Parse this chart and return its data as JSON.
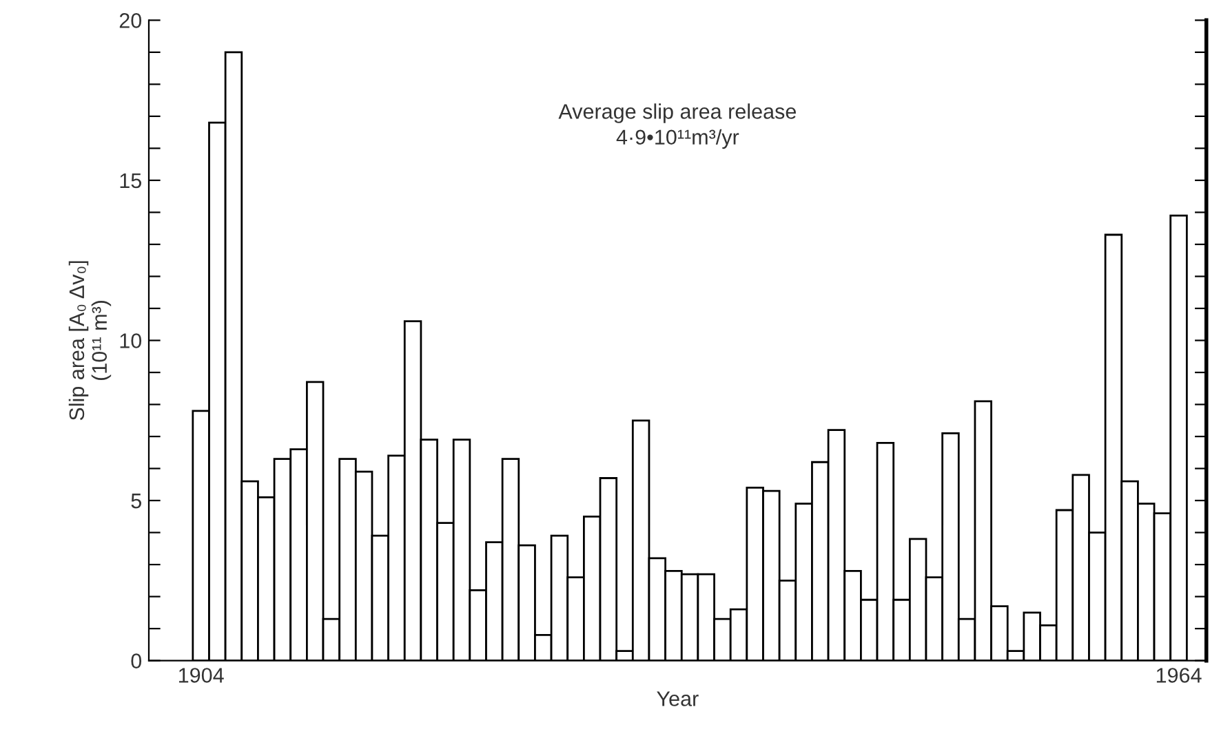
{
  "chart_data": {
    "type": "bar",
    "ylabel": "Slip area [A₀ Δv₀]\n(10¹¹ m³)",
    "xlabel": "Year",
    "annotations": [
      "Average slip area release\n4·9•10¹¹m³/yr"
    ],
    "categories": [
      "1904",
      null,
      null,
      null,
      null,
      null,
      null,
      null,
      null,
      null,
      null,
      null,
      null,
      null,
      null,
      null,
      null,
      null,
      null,
      null,
      null,
      null,
      null,
      null,
      null,
      null,
      null,
      null,
      null,
      null,
      null,
      null,
      null,
      null,
      null,
      null,
      null,
      null,
      null,
      null,
      null,
      null,
      null,
      null,
      null,
      null,
      null,
      null,
      null,
      null,
      null,
      null,
      null,
      null,
      null,
      null,
      null,
      null,
      null,
      null,
      "1964"
    ],
    "values": [
      7.8,
      16.8,
      19.0,
      5.6,
      5.1,
      6.3,
      6.6,
      8.7,
      1.3,
      6.3,
      5.9,
      3.9,
      6.4,
      10.6,
      6.9,
      4.3,
      6.9,
      2.2,
      3.7,
      6.3,
      3.6,
      0.8,
      3.9,
      2.6,
      4.5,
      5.7,
      0.3,
      7.5,
      3.2,
      2.8,
      2.7,
      2.7,
      1.3,
      1.6,
      5.4,
      5.3,
      2.5,
      4.9,
      6.2,
      7.2,
      2.8,
      1.9,
      6.8,
      1.9,
      3.8,
      2.6,
      7.1,
      1.3,
      8.1,
      1.7,
      0.3,
      1.5,
      1.1,
      4.7,
      5.8,
      4.0,
      13.3,
      5.6,
      4.9,
      4.6,
      13.9
    ],
    "color": "#ffffff",
    "ylim": [
      0,
      20
    ],
    "yticks": [
      0,
      {
        "value": 1,
        "label": null
      },
      {
        "value": 2,
        "label": null
      },
      {
        "value": 3,
        "label": null
      },
      {
        "value": 4,
        "label": null
      },
      5,
      {
        "value": 6,
        "label": null
      },
      {
        "value": 7,
        "label": null
      },
      {
        "value": 8,
        "label": null
      },
      {
        "value": 9,
        "label": null
      },
      10,
      {
        "value": 11,
        "label": null
      },
      {
        "value": 12,
        "label": null
      },
      {
        "value": 13,
        "label": null
      },
      {
        "value": 14,
        "label": null
      },
      15,
      {
        "value": 16,
        "label": null
      },
      {
        "value": 17,
        "label": null
      },
      {
        "value": 18,
        "label": null
      },
      {
        "value": 19,
        "label": null
      },
      20
    ],
    "grid": false
  }
}
